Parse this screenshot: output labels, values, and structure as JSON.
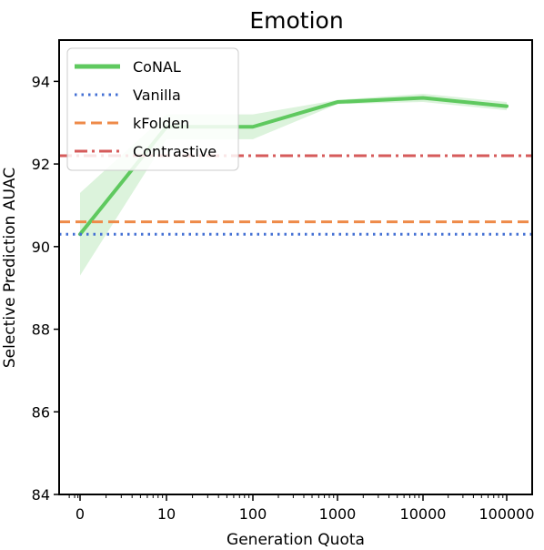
{
  "chart_data": {
    "type": "line",
    "title": "Emotion",
    "xlabel": "Generation Quota",
    "ylabel": "Selective Prediction AUAC",
    "categories": [
      "0",
      "10",
      "100",
      "1000",
      "10000",
      "100000"
    ],
    "ylim": [
      84,
      95
    ],
    "yticks": [
      84,
      86,
      88,
      90,
      92,
      94
    ],
    "grid": false,
    "legend_placement": "top-left",
    "series": [
      {
        "name": "CoNAL",
        "style": "solid",
        "color": "#5fc95f",
        "values": [
          90.3,
          92.9,
          92.9,
          93.5,
          93.6,
          93.4
        ],
        "band_lower": [
          89.3,
          92.6,
          92.6,
          93.45,
          93.5,
          93.3
        ],
        "band_upper": [
          91.3,
          93.2,
          93.2,
          93.55,
          93.7,
          93.5
        ]
      },
      {
        "name": "Vanilla",
        "style": "dotted",
        "color": "#4470d4",
        "constant": 90.3
      },
      {
        "name": "kFolden",
        "style": "dashed",
        "color": "#ee8a48",
        "constant": 90.6
      },
      {
        "name": "Contrastive",
        "style": "dashdot",
        "color": "#d65b5b",
        "constant": 92.2
      }
    ]
  }
}
